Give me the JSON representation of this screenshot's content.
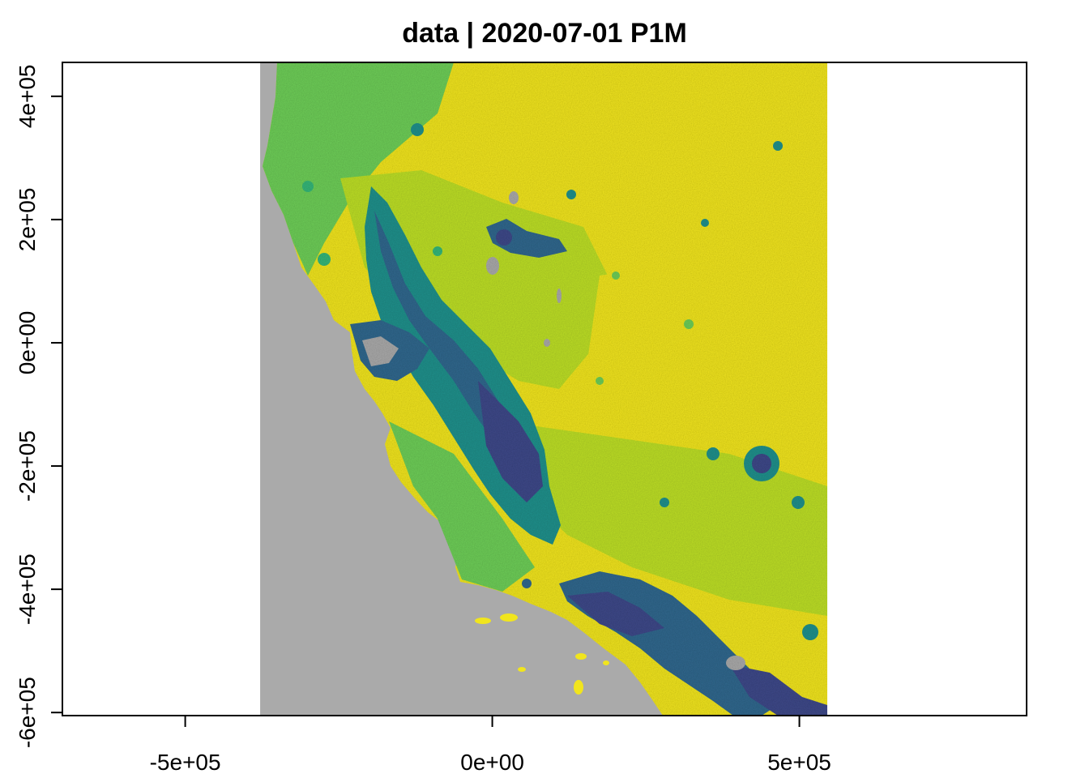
{
  "title": "data | 2020-07-01 P1M",
  "chart_data": {
    "type": "heatmap",
    "title": "data | 2020-07-01 P1M",
    "xlabel": "",
    "ylabel": "",
    "xlim": [
      -700000,
      870000
    ],
    "ylim": [
      -605000,
      455000
    ],
    "x_ticks": [
      {
        "value": -500000,
        "label": "-5e+05"
      },
      {
        "value": 0,
        "label": "0e+00"
      },
      {
        "value": 500000,
        "label": "5e+05"
      }
    ],
    "y_ticks": [
      {
        "value": -600000,
        "label": "-6e+05"
      },
      {
        "value": -400000,
        "label": "-4e+05"
      },
      {
        "value": -200000,
        "label": "-2e+05"
      },
      {
        "value": 0,
        "label": "0e+00"
      },
      {
        "value": 200000,
        "label": "2e+05"
      },
      {
        "value": 400000,
        "label": "4e+05"
      }
    ],
    "raster_extent": {
      "xmin": -378000,
      "xmax": 542000,
      "ymin": -605000,
      "ymax": 455000
    },
    "grid": false,
    "legend": "none",
    "colors": {
      "no_data": "#aaaaaa",
      "high": "#f1e51d",
      "mid_high": "#bddf26",
      "mid": "#6ece58",
      "mid_low": "#35b779",
      "low": "#21918c",
      "lower": "#31688e",
      "lowest": "#3e4989"
    }
  }
}
